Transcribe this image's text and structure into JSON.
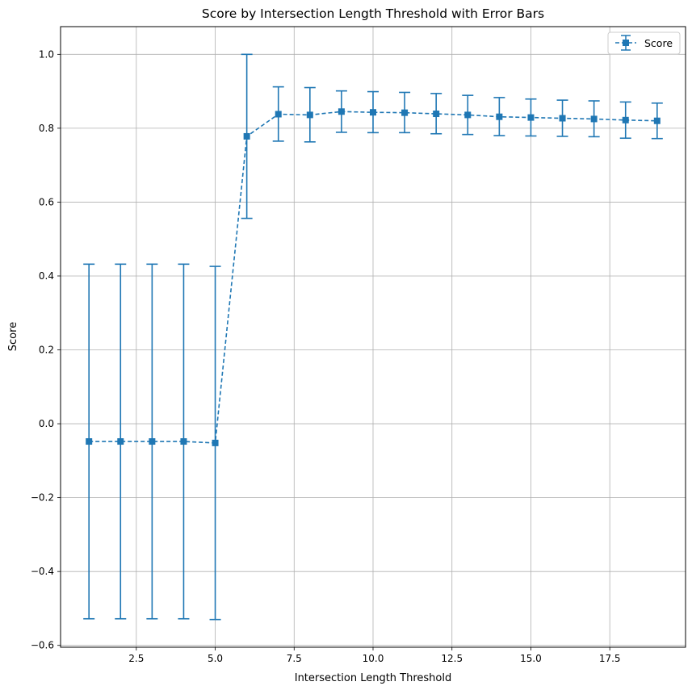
{
  "chart_data": {
    "type": "line",
    "title": "Score by Intersection Length Threshold with Error Bars",
    "xlabel": "Intersection Length Threshold",
    "ylabel": "Score",
    "xlim": [
      0.1,
      19.9
    ],
    "ylim": [
      -0.605,
      1.075
    ],
    "xticks": [
      2.5,
      5.0,
      7.5,
      10.0,
      12.5,
      15.0,
      17.5
    ],
    "xtick_labels": [
      "2.5",
      "5.0",
      "7.5",
      "10.0",
      "12.5",
      "15.0",
      "17.5"
    ],
    "yticks": [
      -0.6,
      -0.4,
      -0.2,
      0.0,
      0.2,
      0.4,
      0.6,
      0.8,
      1.0
    ],
    "ytick_labels": [
      "−0.6",
      "−0.4",
      "−0.2",
      "0.0",
      "0.2",
      "0.4",
      "0.6",
      "0.8",
      "1.0"
    ],
    "grid": true,
    "legend_position": "top-right",
    "color": "#1f77b4",
    "series": [
      {
        "name": "Score",
        "marker": "square",
        "line_style": "dashed",
        "x": [
          1,
          2,
          3,
          4,
          5,
          6,
          7,
          8,
          9,
          10,
          11,
          12,
          13,
          14,
          15,
          16,
          17,
          18,
          19
        ],
        "y": [
          -0.048,
          -0.048,
          -0.048,
          -0.048,
          -0.052,
          0.778,
          0.838,
          0.836,
          0.845,
          0.843,
          0.842,
          0.839,
          0.836,
          0.831,
          0.829,
          0.827,
          0.825,
          0.822,
          0.82
        ],
        "err_low": [
          -0.528,
          -0.528,
          -0.528,
          -0.528,
          -0.53,
          0.556,
          0.765,
          0.763,
          0.789,
          0.788,
          0.788,
          0.785,
          0.783,
          0.78,
          0.779,
          0.778,
          0.777,
          0.773,
          0.772
        ],
        "err_high": [
          0.432,
          0.432,
          0.432,
          0.432,
          0.426,
          1.0,
          0.912,
          0.91,
          0.901,
          0.899,
          0.897,
          0.894,
          0.889,
          0.883,
          0.879,
          0.876,
          0.874,
          0.871,
          0.868
        ]
      }
    ]
  }
}
